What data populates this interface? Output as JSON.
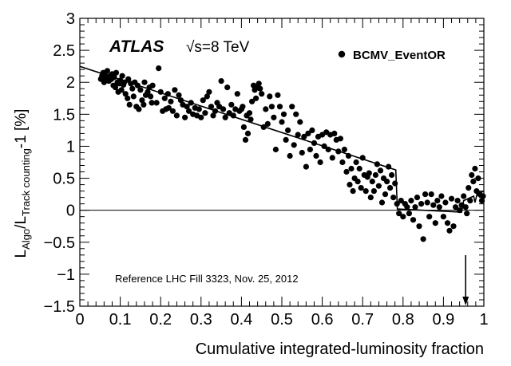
{
  "chart_data": {
    "type": "scatter",
    "title": "",
    "xlabel": "Cumulative integrated-luminosity fraction",
    "ylabel_parts": [
      "L",
      "Algo",
      "/L",
      "Track counting",
      "-1 [%]"
    ],
    "xlim": [
      0,
      1
    ],
    "ylim": [
      -1.5,
      3
    ],
    "x_ticks": [
      0,
      0.1,
      0.2,
      0.3,
      0.4,
      0.5,
      0.6,
      0.7,
      0.8,
      0.9,
      1
    ],
    "x_tick_labels": [
      "0",
      "0.1",
      "0.2",
      "0.3",
      "0.4",
      "0.5",
      "0.6",
      "0.7",
      "0.8",
      "0.9",
      "1"
    ],
    "y_ticks": [
      -1.5,
      -1,
      -0.5,
      0,
      0.5,
      1,
      1.5,
      2,
      2.5,
      3
    ],
    "y_tick_labels": [
      "−1.5",
      "−1",
      "−0.5",
      "0",
      "0.5",
      "1",
      "1.5",
      "2",
      "2.5",
      "3"
    ],
    "atlas_label": "ATLAS",
    "energy_label": "√s=8 TeV",
    "annotation": "Reference LHC Fill 3323, Nov. 25, 2012",
    "reference_line_y": 0,
    "arrow_x": 0.955,
    "series": [
      {
        "name": "BCMV_EventOR",
        "kind": "points",
        "points": [
          [
            0.052,
            2.05
          ],
          [
            0.055,
            2.1
          ],
          [
            0.058,
            2.15
          ],
          [
            0.06,
            2.0
          ],
          [
            0.062,
            2.12
          ],
          [
            0.065,
            2.06
          ],
          [
            0.068,
            2.18
          ],
          [
            0.07,
            2.08
          ],
          [
            0.072,
            2.02
          ],
          [
            0.075,
            2.1
          ],
          [
            0.078,
            2.05
          ],
          [
            0.08,
            2.13
          ],
          [
            0.083,
            1.95
          ],
          [
            0.085,
            2.08
          ],
          [
            0.088,
            1.92
          ],
          [
            0.09,
            2.15
          ],
          [
            0.093,
            2.0
          ],
          [
            0.095,
            1.85
          ],
          [
            0.098,
            1.98
          ],
          [
            0.1,
            2.03
          ],
          [
            0.103,
            1.88
          ],
          [
            0.105,
            2.1
          ],
          [
            0.108,
            1.96
          ],
          [
            0.11,
            2.0
          ],
          [
            0.113,
            1.82
          ],
          [
            0.118,
            1.75
          ],
          [
            0.12,
            2.05
          ],
          [
            0.123,
            1.65
          ],
          [
            0.126,
            1.98
          ],
          [
            0.13,
            1.9
          ],
          [
            0.133,
            1.78
          ],
          [
            0.136,
            2.0
          ],
          [
            0.14,
            1.62
          ],
          [
            0.143,
            1.95
          ],
          [
            0.146,
            1.58
          ],
          [
            0.15,
            1.88
          ],
          [
            0.154,
            1.72
          ],
          [
            0.158,
            1.65
          ],
          [
            0.16,
            2.0
          ],
          [
            0.163,
            1.8
          ],
          [
            0.168,
            1.85
          ],
          [
            0.172,
            1.92
          ],
          [
            0.175,
            1.78
          ],
          [
            0.178,
            1.68
          ],
          [
            0.18,
            1.95
          ],
          [
            0.19,
            1.68
          ],
          [
            0.195,
            2.22
          ],
          [
            0.2,
            1.85
          ],
          [
            0.205,
            1.55
          ],
          [
            0.21,
            1.75
          ],
          [
            0.213,
            1.58
          ],
          [
            0.218,
            1.82
          ],
          [
            0.22,
            1.6
          ],
          [
            0.225,
            1.7
          ],
          [
            0.23,
            1.55
          ],
          [
            0.235,
            1.88
          ],
          [
            0.24,
            1.48
          ],
          [
            0.245,
            1.8
          ],
          [
            0.25,
            1.72
          ],
          [
            0.255,
            1.65
          ],
          [
            0.26,
            1.45
          ],
          [
            0.265,
            1.62
          ],
          [
            0.27,
            1.55
          ],
          [
            0.275,
            1.68
          ],
          [
            0.28,
            1.5
          ],
          [
            0.285,
            1.6
          ],
          [
            0.29,
            1.48
          ],
          [
            0.295,
            1.58
          ],
          [
            0.3,
            1.45
          ],
          [
            0.305,
            1.72
          ],
          [
            0.31,
            1.52
          ],
          [
            0.315,
            1.78
          ],
          [
            0.32,
            1.85
          ],
          [
            0.325,
            1.62
          ],
          [
            0.33,
            1.48
          ],
          [
            0.335,
            1.55
          ],
          [
            0.34,
            1.68
          ],
          [
            0.345,
            1.62
          ],
          [
            0.35,
            2.02
          ],
          [
            0.355,
            1.58
          ],
          [
            0.36,
            1.45
          ],
          [
            0.365,
            1.92
          ],
          [
            0.37,
            1.52
          ],
          [
            0.375,
            1.65
          ],
          [
            0.38,
            1.48
          ],
          [
            0.385,
            1.58
          ],
          [
            0.39,
            1.82
          ],
          [
            0.395,
            1.55
          ],
          [
            0.4,
            1.58
          ],
          [
            0.403,
            1.62
          ],
          [
            0.406,
            1.3
          ],
          [
            0.41,
            1.1
          ],
          [
            0.413,
            1.48
          ],
          [
            0.416,
            1.2
          ],
          [
            0.42,
            1.52
          ],
          [
            0.423,
            1.42
          ],
          [
            0.426,
            1.7
          ],
          [
            0.43,
            1.95
          ],
          [
            0.433,
            1.88
          ],
          [
            0.436,
            1.75
          ],
          [
            0.44,
            1.92
          ],
          [
            0.443,
            1.98
          ],
          [
            0.446,
            1.9
          ],
          [
            0.45,
            1.82
          ],
          [
            0.455,
            1.3
          ],
          [
            0.46,
            1.58
          ],
          [
            0.465,
            1.35
          ],
          [
            0.47,
            1.78
          ],
          [
            0.475,
            1.62
          ],
          [
            0.48,
            1.45
          ],
          [
            0.485,
            0.95
          ],
          [
            0.49,
            1.8
          ],
          [
            0.495,
            1.62
          ],
          [
            0.5,
            1.38
          ],
          [
            0.505,
            1.5
          ],
          [
            0.51,
            1.1
          ],
          [
            0.515,
            1.25
          ],
          [
            0.52,
            0.85
          ],
          [
            0.525,
            1.62
          ],
          [
            0.53,
            1.02
          ],
          [
            0.535,
            1.5
          ],
          [
            0.54,
            1.18
          ],
          [
            0.545,
            1.38
          ],
          [
            0.55,
            0.9
          ],
          [
            0.555,
            1.15
          ],
          [
            0.56,
            0.68
          ],
          [
            0.565,
            1.2
          ],
          [
            0.57,
            0.95
          ],
          [
            0.575,
            1.25
          ],
          [
            0.58,
            1.05
          ],
          [
            0.585,
            0.85
          ],
          [
            0.59,
            1.15
          ],
          [
            0.595,
            0.75
          ],
          [
            0.6,
            1.18
          ],
          [
            0.605,
            1.0
          ],
          [
            0.61,
            1.22
          ],
          [
            0.615,
            0.95
          ],
          [
            0.62,
            1.18
          ],
          [
            0.625,
            0.82
          ],
          [
            0.63,
            1.2
          ],
          [
            0.635,
            1.1
          ],
          [
            0.64,
            0.92
          ],
          [
            0.645,
            1.12
          ],
          [
            0.65,
            0.75
          ],
          [
            0.655,
            0.95
          ],
          [
            0.66,
            0.6
          ],
          [
            0.665,
            0.85
          ],
          [
            0.668,
            0.4
          ],
          [
            0.672,
            0.65
          ],
          [
            0.676,
            0.3
          ],
          [
            0.68,
            0.5
          ],
          [
            0.684,
            0.75
          ],
          [
            0.688,
            0.45
          ],
          [
            0.692,
            0.65
          ],
          [
            0.696,
            0.35
          ],
          [
            0.7,
            0.82
          ],
          [
            0.704,
            0.55
          ],
          [
            0.708,
            0.3
          ],
          [
            0.712,
            0.52
          ],
          [
            0.716,
            0.58
          ],
          [
            0.72,
            0.2
          ],
          [
            0.724,
            0.45
          ],
          [
            0.728,
            0.3
          ],
          [
            0.732,
            0.55
          ],
          [
            0.736,
            0.72
          ],
          [
            0.74,
            0.38
          ],
          [
            0.744,
            0.62
          ],
          [
            0.748,
            0.12
          ],
          [
            0.752,
            0.5
          ],
          [
            0.756,
            0.25
          ],
          [
            0.76,
            0.45
          ],
          [
            0.764,
            0.68
          ],
          [
            0.768,
            0.35
          ],
          [
            0.772,
            0.55
          ],
          [
            0.776,
            0.2
          ],
          [
            0.78,
            0.42
          ],
          [
            0.785,
            0.1
          ],
          [
            0.79,
            -0.05
          ],
          [
            0.795,
            0.15
          ],
          [
            0.8,
            -0.1
          ],
          [
            0.805,
            0.1
          ],
          [
            0.81,
            0.05
          ],
          [
            0.815,
            -0.05
          ],
          [
            0.82,
            0.15
          ],
          [
            0.825,
            -0.15
          ],
          [
            0.83,
            0.05
          ],
          [
            0.835,
            0.2
          ],
          [
            0.84,
            -0.25
          ],
          [
            0.845,
            0.1
          ],
          [
            0.85,
            -0.45
          ],
          [
            0.855,
            0.25
          ],
          [
            0.86,
            0.12
          ],
          [
            0.865,
            -0.1
          ],
          [
            0.87,
            0.25
          ],
          [
            0.875,
            0.08
          ],
          [
            0.88,
            -0.2
          ],
          [
            0.885,
            0.15
          ],
          [
            0.89,
            0.05
          ],
          [
            0.895,
            0.22
          ],
          [
            0.9,
            -0.1
          ],
          [
            0.905,
            0.12
          ],
          [
            0.91,
            -0.2
          ],
          [
            0.915,
            -0.32
          ],
          [
            0.92,
            0.18
          ],
          [
            0.925,
            -0.25
          ],
          [
            0.93,
            0.05
          ],
          [
            0.935,
            0.15
          ],
          [
            0.94,
            0.0
          ],
          [
            0.945,
            0.08
          ],
          [
            0.95,
            0.22
          ],
          [
            0.955,
            0.05
          ],
          [
            0.958,
            -0.05
          ],
          [
            0.962,
            0.35
          ],
          [
            0.966,
            0.15
          ],
          [
            0.97,
            0.55
          ],
          [
            0.974,
            0.45
          ],
          [
            0.978,
            0.65
          ],
          [
            0.982,
            0.3
          ],
          [
            0.986,
            0.5
          ],
          [
            0.99,
            0.25
          ],
          [
            0.995,
            0.15
          ],
          [
            0.998,
            0.22
          ]
        ]
      },
      {
        "name": "fit",
        "kind": "line",
        "points": [
          [
            0.0,
            2.25
          ],
          [
            0.782,
            0.63
          ],
          [
            0.786,
            0.02
          ],
          [
            0.945,
            -0.03
          ],
          [
            0.95,
            0.15
          ],
          [
            0.975,
            0.22
          ],
          [
            0.978,
            0.12
          ],
          [
            0.983,
            0.25
          ],
          [
            1.0,
            0.3
          ]
        ]
      }
    ]
  }
}
